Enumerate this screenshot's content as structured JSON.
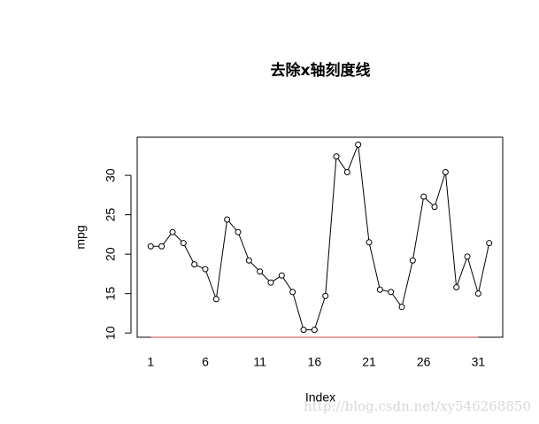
{
  "chart_data": {
    "type": "line",
    "title": "去除x轴刻度线",
    "xlabel": "Index",
    "ylabel": "mpg",
    "x": [
      1,
      2,
      3,
      4,
      5,
      6,
      7,
      8,
      9,
      10,
      11,
      12,
      13,
      14,
      15,
      16,
      17,
      18,
      19,
      20,
      21,
      22,
      23,
      24,
      25,
      26,
      27,
      28,
      29,
      30,
      31,
      32
    ],
    "values": [
      21.0,
      21.0,
      22.8,
      21.4,
      18.7,
      18.1,
      14.3,
      24.4,
      22.8,
      19.2,
      17.8,
      16.4,
      17.3,
      15.2,
      10.4,
      10.4,
      14.7,
      32.4,
      30.4,
      33.9,
      21.5,
      15.5,
      15.2,
      13.3,
      19.2,
      27.3,
      26.0,
      30.4,
      15.8,
      19.7,
      15.0,
      21.4
    ],
    "color": "#000000",
    "x_axis_color": "#d04040",
    "xlim": [
      -0.24,
      33.24
    ],
    "ylim": [
      9.46,
      34.84
    ],
    "xticks": [
      1,
      6,
      11,
      16,
      21,
      26,
      31
    ],
    "yticks": [
      10,
      15,
      20,
      25,
      30
    ],
    "watermark": "http://blog.csdn.net/xy546268850"
  }
}
